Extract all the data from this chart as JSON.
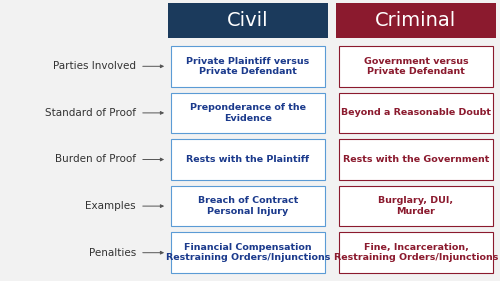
{
  "title_civil": "Civil",
  "title_criminal": "Criminal",
  "civil_header_color": "#1b3a5c",
  "criminal_header_color": "#8b1a2e",
  "civil_text_color": "#1b3a8c",
  "criminal_text_color": "#8b1a2e",
  "row_label_color": "#333333",
  "box_border_civil": "#5b9bd5",
  "box_border_criminal": "#8b1a2e",
  "bg_color": "#f2f2f2",
  "rows": [
    {
      "label": "Parties Involved",
      "civil": "Private Plaintiff versus\nPrivate Defendant",
      "criminal": "Government versus\nPrivate Defendant"
    },
    {
      "label": "Standard of Proof",
      "civil": "Preponderance of the\nEvidence",
      "criminal": "Beyond a Reasonable Doubt"
    },
    {
      "label": "Burden of Proof",
      "civil": "Rests with the Plaintiff",
      "criminal": "Rests with the Government"
    },
    {
      "label": "Examples",
      "civil": "Breach of Contract\nPersonal Injury",
      "criminal": "Burglary, DUI,\nMurder"
    },
    {
      "label": "Penalties",
      "civil": "Financial Compensation\nRestraining Orders/Injunctions",
      "criminal": "Fine, Incarceration,\nRestraining Orders/Injunctions"
    }
  ],
  "label_fontsize": 7.5,
  "cell_fontsize": 6.8,
  "header_fontsize": 14
}
